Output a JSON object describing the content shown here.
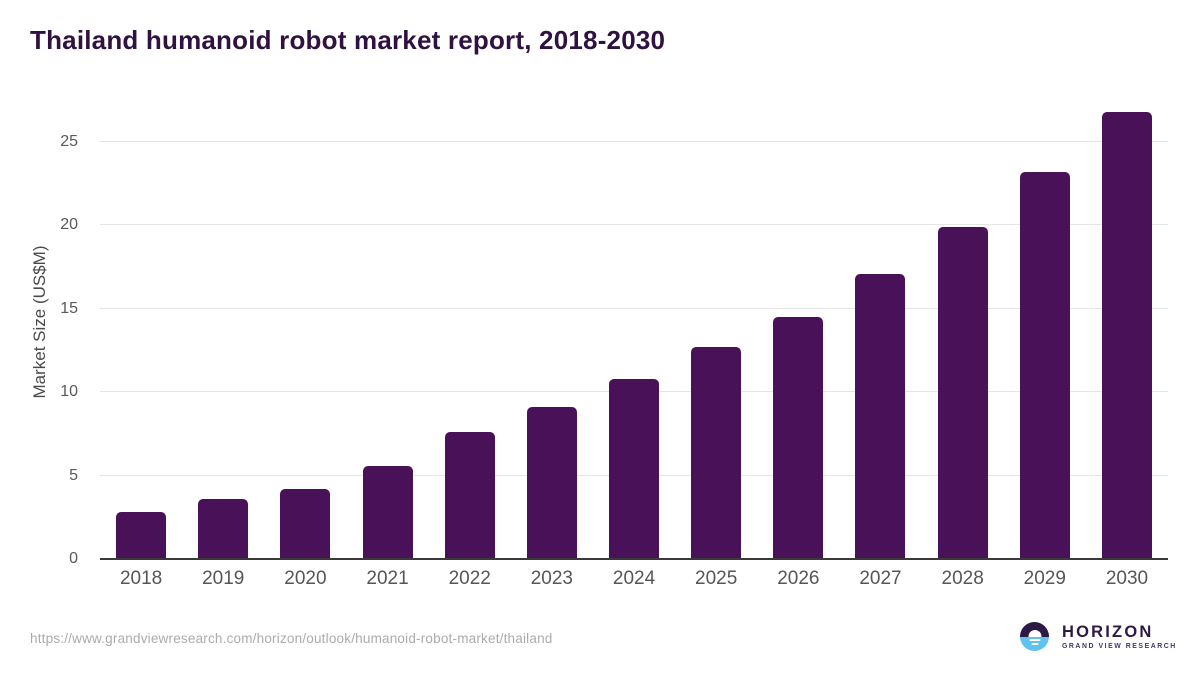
{
  "title": "Thailand humanoid robot market report, 2018-2030",
  "chart_data": {
    "type": "bar",
    "title": "Thailand humanoid robot market report, 2018-2030",
    "categories": [
      "2018",
      "2019",
      "2020",
      "2021",
      "2022",
      "2023",
      "2024",
      "2025",
      "2026",
      "2027",
      "2028",
      "2029",
      "2030"
    ],
    "values": [
      2.8,
      3.6,
      4.2,
      5.6,
      7.6,
      9.1,
      10.8,
      12.7,
      14.5,
      17.1,
      19.9,
      23.2,
      26.8
    ],
    "xlabel": "",
    "ylabel": "Market Size (US$M)",
    "ylim": [
      0,
      27.5
    ],
    "yticks": [
      0,
      5,
      10,
      15,
      20,
      25
    ],
    "grid": "horizontal",
    "legend": "none",
    "bar_color": "#491157"
  },
  "footer": {
    "source_url": "https://www.grandviewresearch.com/horizon/outlook/humanoid-robot-market/thailand",
    "logo": {
      "brand": "HORIZON",
      "sub_brand": "GRAND VIEW RESEARCH",
      "icon": "sunrise-circle-icon",
      "icon_dark_color": "#2a1a45",
      "icon_blue_color": "#5fc3ee"
    }
  },
  "colors": {
    "background": "#ffffff",
    "title_text": "#2f1240",
    "bar": "#491157",
    "gridline": "#e5e5e5",
    "axis_line": "#3a3a3a",
    "tick_label": "#595959",
    "url_text": "#ababab"
  }
}
